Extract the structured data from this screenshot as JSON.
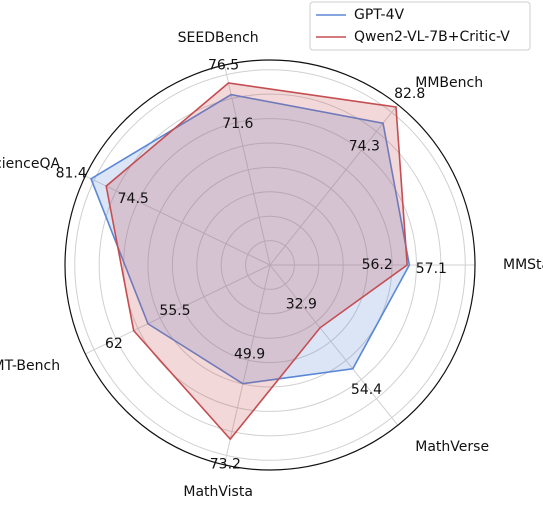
{
  "chart_data": {
    "type": "radar",
    "categories": [
      "MMStar",
      "MMBench",
      "SEEDBench",
      "ScienceQA",
      "MMT-Bench",
      "MathVista",
      "MathVerse"
    ],
    "series": [
      {
        "name": "GPT-4V",
        "color": "#5a87d6",
        "values": [
          57.1,
          74.3,
          71.6,
          81.4,
          55.5,
          49.9,
          54.4
        ]
      },
      {
        "name": "Qwen2-VL-7B+Critic-V",
        "color": "#c44e52",
        "values": [
          56.2,
          82.8,
          76.5,
          74.5,
          62,
          73.2,
          32.9
        ]
      }
    ],
    "rlim": [
      0,
      84
    ],
    "grid": true,
    "legend": "upper right"
  }
}
